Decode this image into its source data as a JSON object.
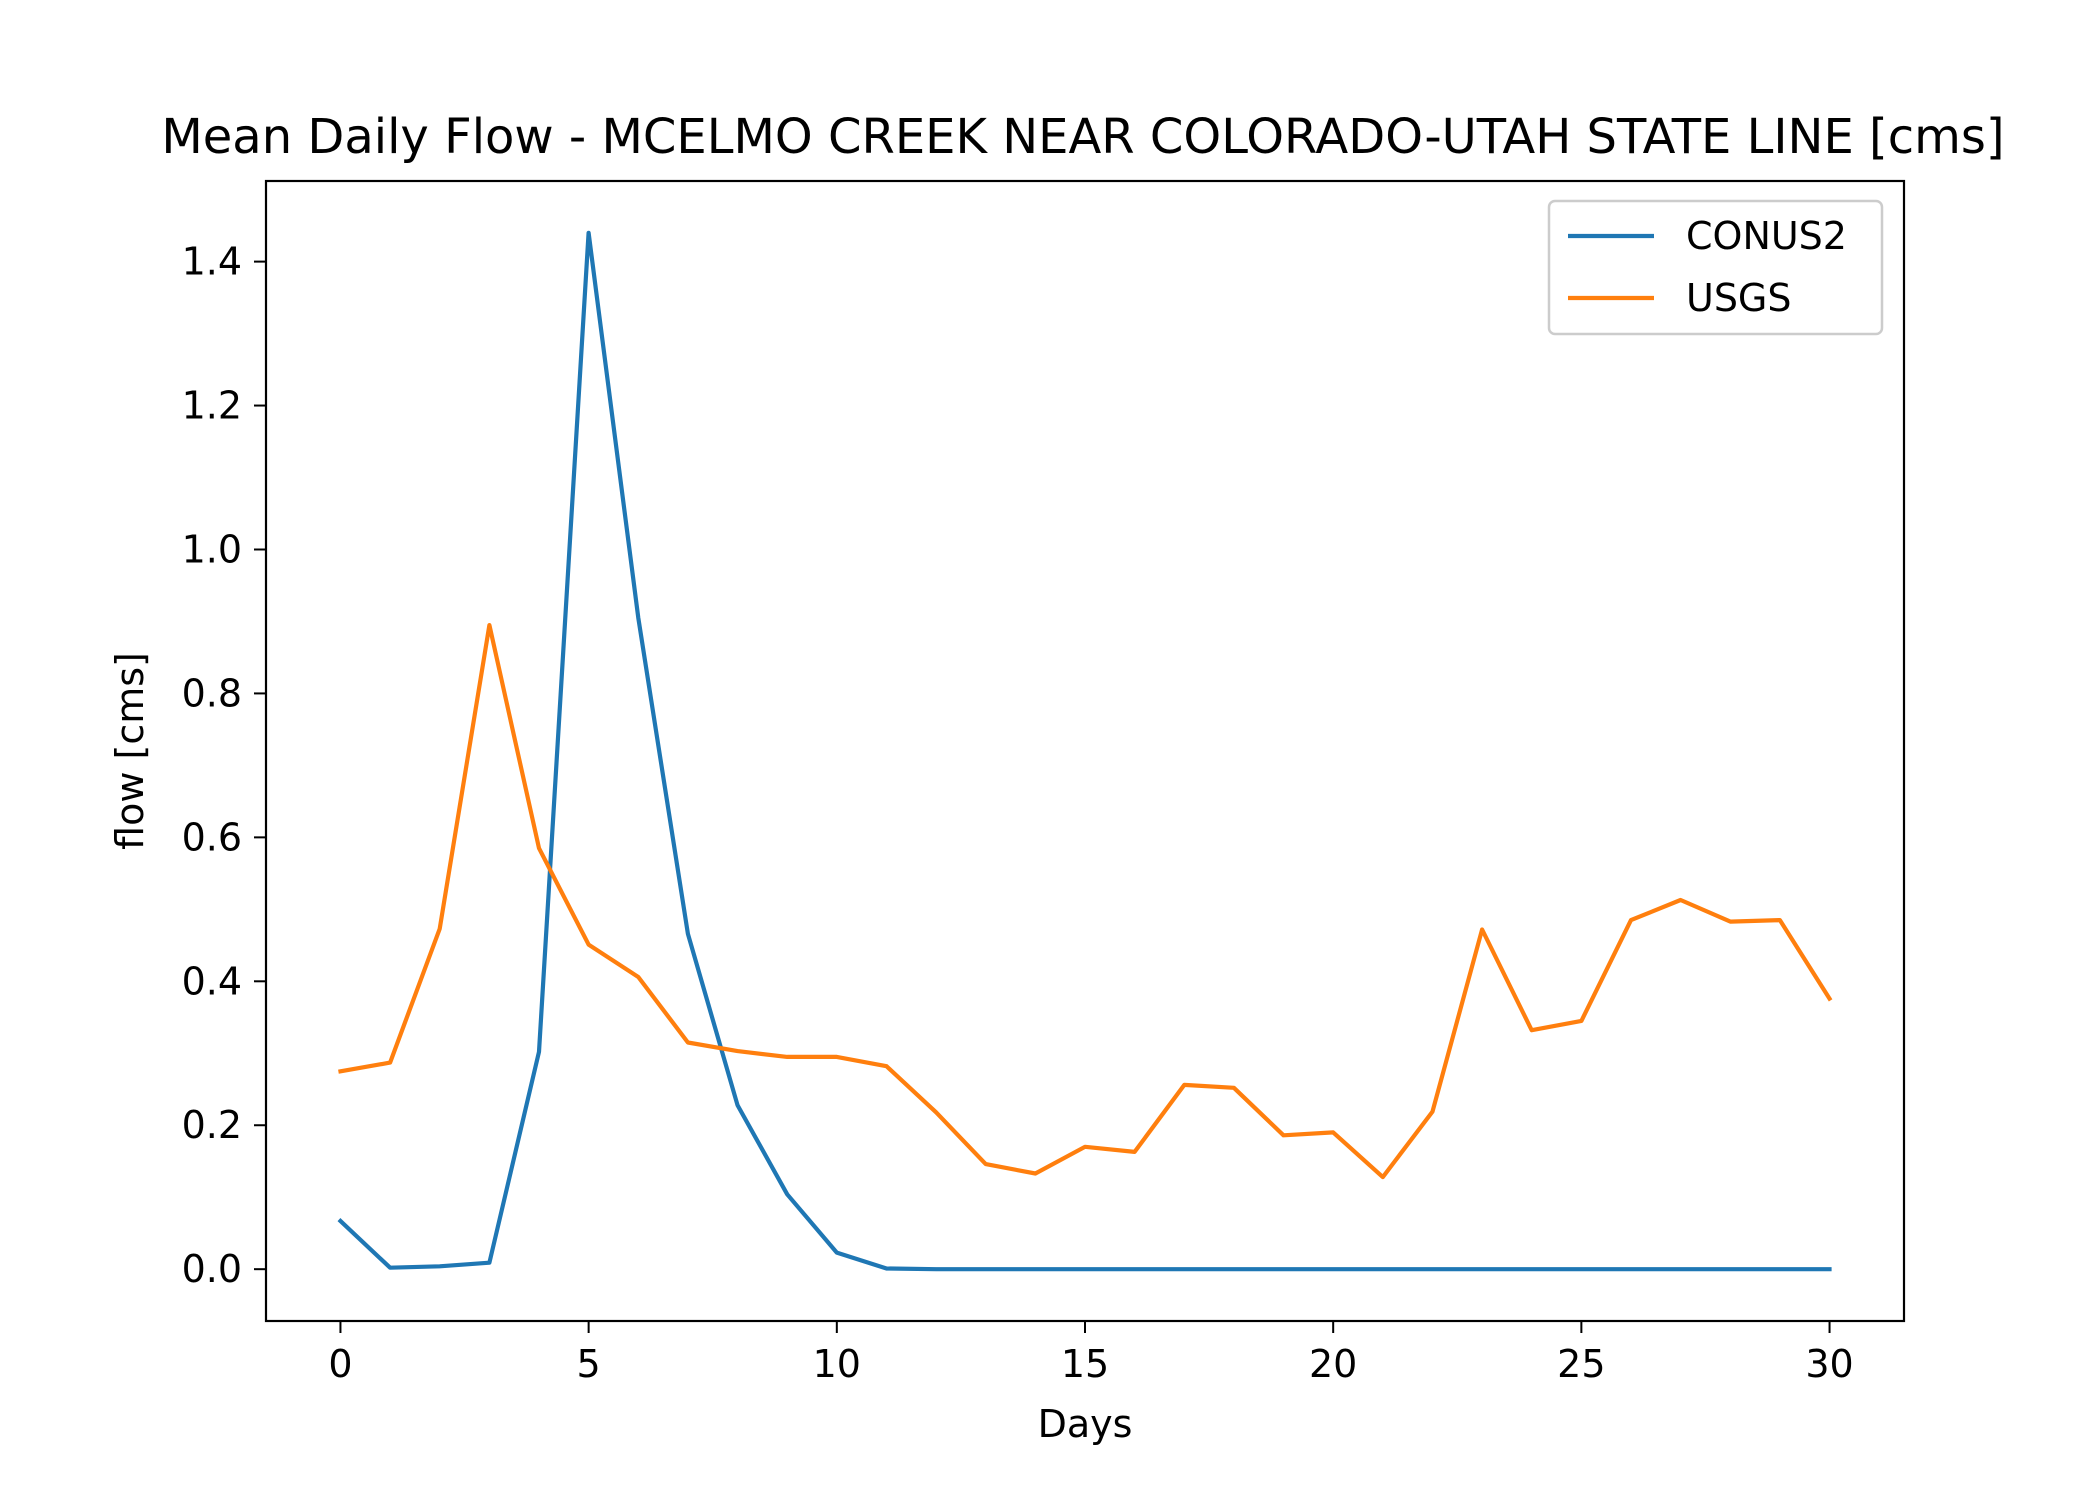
{
  "chart_data": {
    "type": "line",
    "title": "Mean Daily Flow - MCELMO CREEK NEAR COLORADO-UTAH STATE LINE [cms]",
    "xlabel": "Days",
    "ylabel": "flow [cms]",
    "xlim": [
      -1.5,
      31.5
    ],
    "ylim": [
      -0.072,
      1.512
    ],
    "x_ticks": [
      0,
      5,
      10,
      15,
      20,
      25,
      30
    ],
    "y_ticks": [
      0.0,
      0.2,
      0.4,
      0.6,
      0.8,
      1.0,
      1.2,
      1.4
    ],
    "x_tick_labels": [
      "0",
      "5",
      "10",
      "15",
      "20",
      "25",
      "30"
    ],
    "y_tick_labels": [
      "0.0",
      "0.2",
      "0.4",
      "0.6",
      "0.8",
      "1.0",
      "1.2",
      "1.4"
    ],
    "grid": false,
    "legend_position": "upper right",
    "x": [
      0,
      1,
      2,
      3,
      4,
      5,
      6,
      7,
      8,
      9,
      10,
      11,
      12,
      13,
      14,
      15,
      16,
      17,
      18,
      19,
      20,
      21,
      22,
      23,
      24,
      25,
      26,
      27,
      28,
      29,
      30
    ],
    "series": [
      {
        "name": "CONUS2",
        "color": "#1f77b4",
        "values": [
          0.067,
          0.002,
          0.004,
          0.009,
          0.302,
          1.44,
          0.905,
          0.466,
          0.228,
          0.104,
          0.023,
          0.001,
          0,
          0,
          0,
          0,
          0,
          0,
          0,
          0,
          0,
          0,
          0,
          0,
          0,
          0,
          0,
          0,
          0,
          0,
          0
        ]
      },
      {
        "name": "USGS",
        "color": "#ff7f0e",
        "values": [
          0.275,
          0.287,
          0.473,
          0.895,
          0.585,
          0.451,
          0.406,
          0.315,
          0.303,
          0.295,
          0.295,
          0.282,
          0.218,
          0.146,
          0.133,
          0.17,
          0.163,
          0.256,
          0.252,
          0.186,
          0.19,
          0.128,
          0.219,
          0.472,
          0.332,
          0.345,
          0.485,
          0.513,
          0.483,
          0.485,
          0.376
        ]
      }
    ]
  }
}
